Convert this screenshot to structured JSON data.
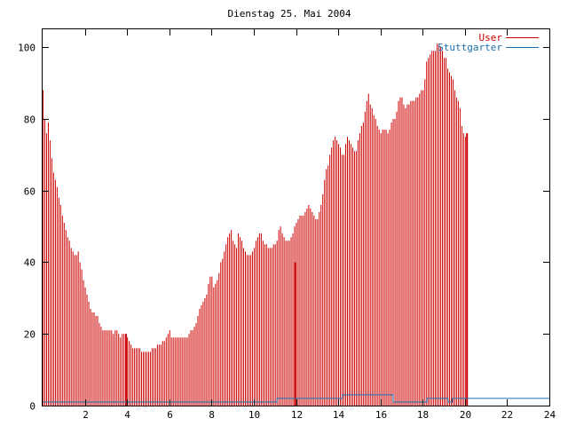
{
  "chart_data": {
    "type": "bar",
    "title": "Dienstag 25. Mai 2004",
    "xlabel": "",
    "ylabel": "",
    "xlim": [
      0,
      24
    ],
    "ylim": [
      0,
      105
    ],
    "x_ticks": [
      2,
      4,
      6,
      8,
      10,
      12,
      14,
      16,
      18,
      20,
      22,
      24
    ],
    "y_ticks": [
      0,
      20,
      40,
      60,
      80,
      100
    ],
    "grid": false,
    "legend_position": "top-right",
    "colors": {
      "User": "#cc0000",
      "Stuttgarter": "#1a6fb0"
    },
    "series": [
      {
        "name": "User",
        "step_minutes": 5,
        "values": [
          88,
          80,
          76,
          79,
          74,
          69,
          65,
          63,
          61,
          58,
          56,
          53,
          51,
          49,
          47,
          46,
          44,
          43,
          42,
          42,
          43,
          40,
          38,
          35,
          33,
          31,
          29,
          27,
          26,
          26,
          25,
          25,
          23,
          22,
          21,
          21,
          21,
          21,
          21,
          21,
          20,
          21,
          21,
          20,
          19,
          20,
          20,
          20,
          19,
          18,
          17,
          16,
          16,
          16,
          16,
          16,
          15,
          15,
          15,
          15,
          15,
          15,
          16,
          16,
          16,
          17,
          17,
          17,
          18,
          18,
          19,
          20,
          21,
          19,
          19,
          19,
          19,
          19,
          19,
          19,
          19,
          19,
          19,
          20,
          21,
          21,
          22,
          23,
          25,
          27,
          28,
          29,
          30,
          31,
          34,
          36,
          36,
          33,
          34,
          35,
          37,
          40,
          41,
          43,
          45,
          47,
          48,
          49,
          46,
          45,
          44,
          48,
          47,
          46,
          44,
          43,
          42,
          42,
          42,
          43,
          44,
          46,
          47,
          48,
          48,
          46,
          45,
          45,
          44,
          44,
          44,
          45,
          45,
          46,
          49,
          50,
          48,
          47,
          46,
          46,
          46,
          47,
          48,
          50,
          51,
          52,
          53,
          53,
          53,
          54,
          55,
          56,
          55,
          54,
          53,
          52,
          52,
          54,
          56,
          59,
          63,
          66,
          67,
          70,
          72,
          74,
          75,
          74,
          73,
          72,
          70,
          70,
          73,
          75,
          74,
          73,
          72,
          71,
          71,
          74,
          76,
          78,
          79,
          82,
          85,
          87,
          84,
          83,
          81,
          80,
          78,
          77,
          76,
          77,
          77,
          77,
          76,
          77,
          79,
          80,
          80,
          82,
          85,
          86,
          86,
          84,
          83,
          84,
          84,
          85,
          85,
          85,
          86,
          86,
          87,
          88,
          88,
          91,
          96,
          97,
          98,
          99,
          99,
          99,
          101,
          101,
          100,
          99,
          97,
          97,
          94,
          93,
          92,
          91,
          88,
          86,
          85,
          83,
          78,
          76,
          75,
          74
        ],
        "spikes": [
          {
            "x": 3.95,
            "value": 20
          },
          {
            "x": 11.95,
            "value": 40
          },
          {
            "x": 20.1,
            "value": 76
          }
        ]
      },
      {
        "name": "Stuttgarter",
        "segments": [
          {
            "from": 0,
            "to": 11.1,
            "value": 1
          },
          {
            "from": 11.1,
            "to": 14.2,
            "value": 2
          },
          {
            "from": 14.2,
            "to": 16.6,
            "value": 3
          },
          {
            "from": 16.6,
            "to": 18.2,
            "value": 1
          },
          {
            "from": 18.2,
            "to": 19.2,
            "value": 2
          },
          {
            "from": 19.2,
            "to": 19.4,
            "value": 1
          },
          {
            "from": 19.4,
            "to": 24,
            "value": 2
          }
        ]
      }
    ]
  }
}
